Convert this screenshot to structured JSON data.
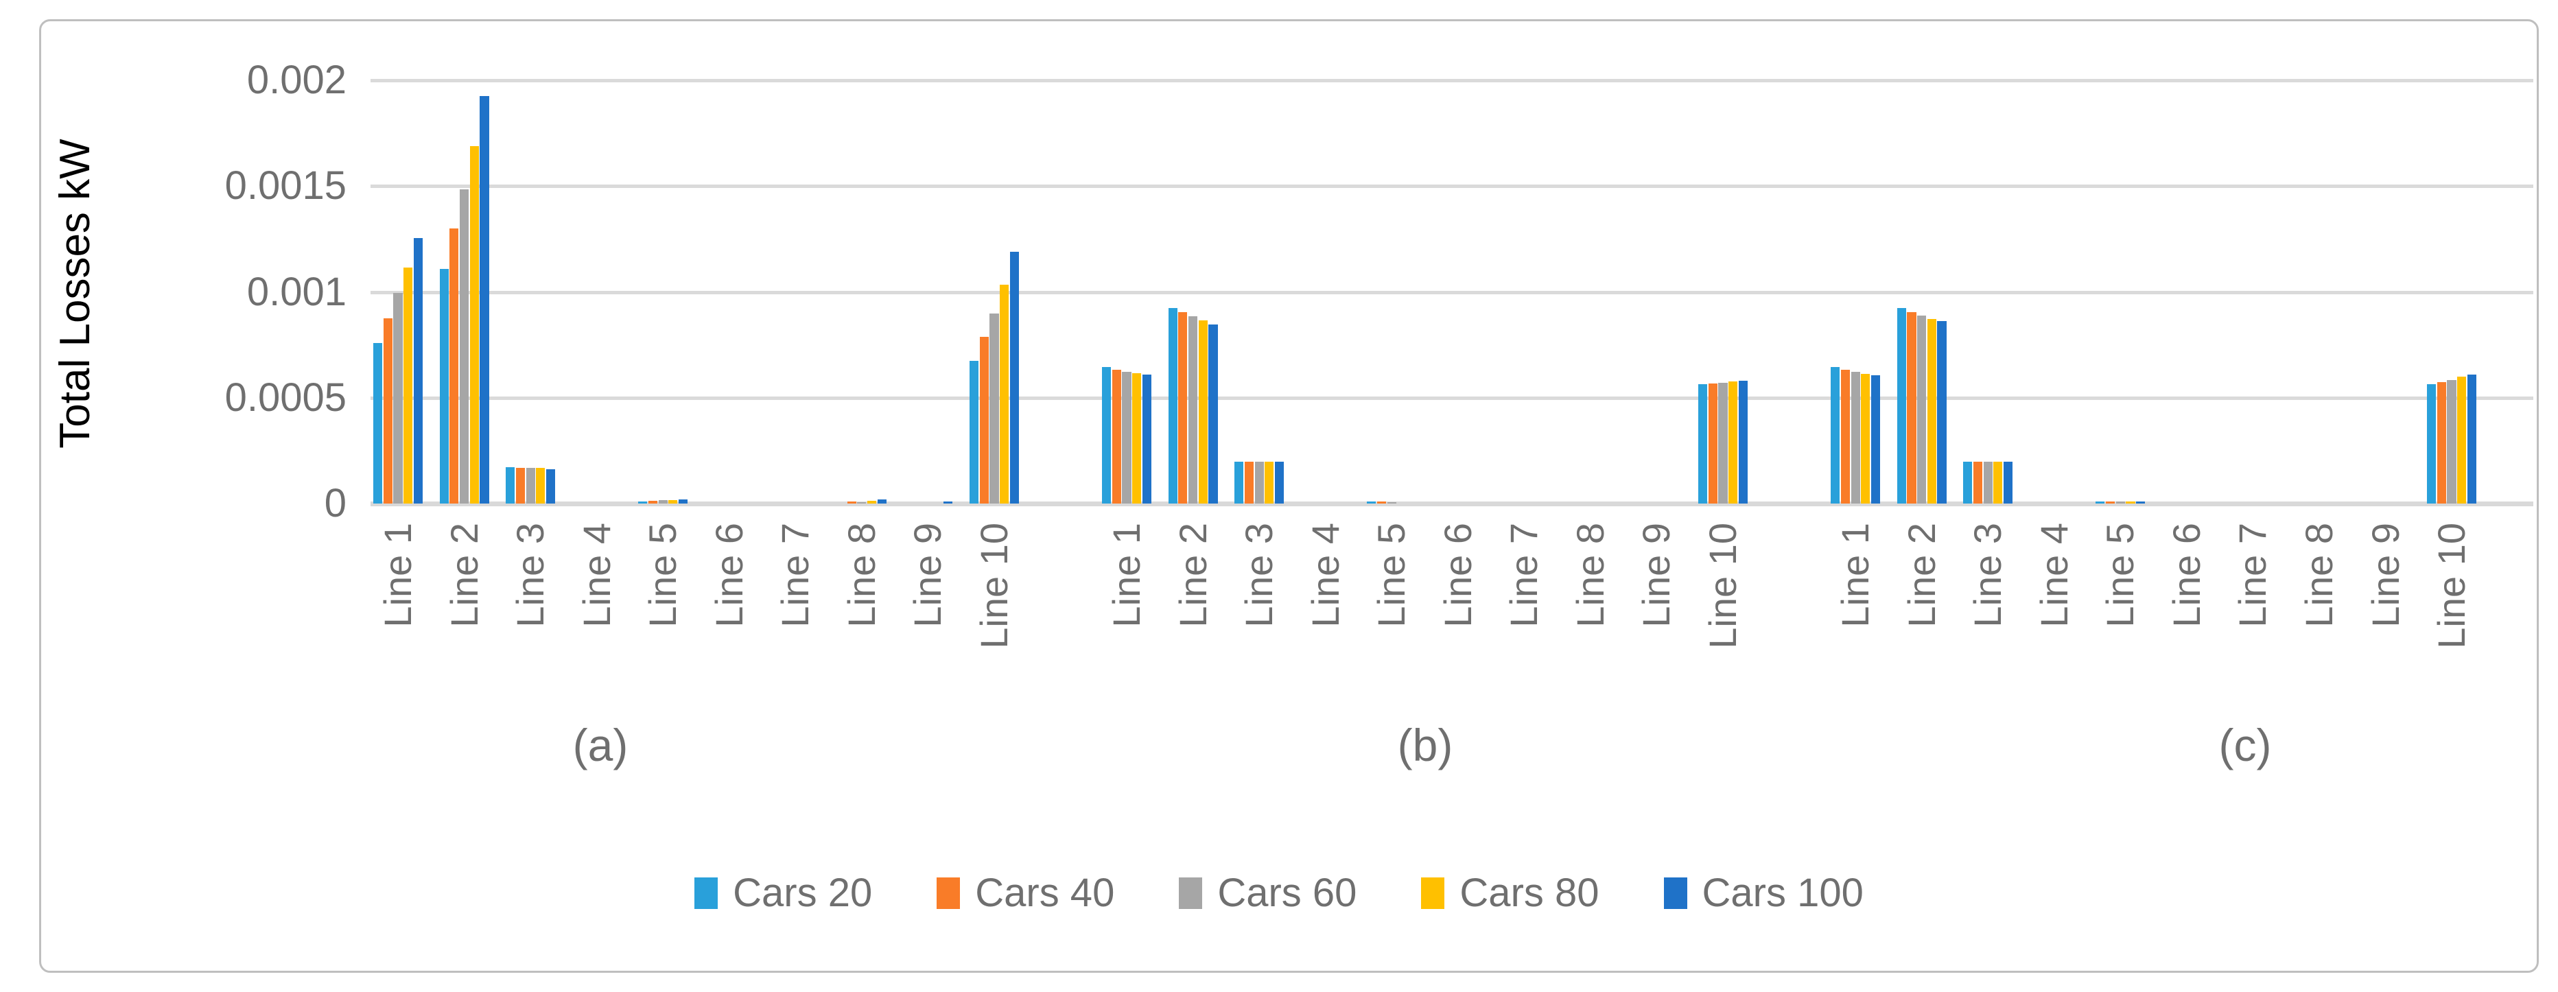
{
  "figure": {
    "border_color": "#BFBFBF",
    "background_color": "#FFFFFF",
    "grid_color": "#DADADA",
    "axis_color": "#D9D9D9",
    "text_color": "#6F6F6F"
  },
  "chart_data": {
    "type": "bar",
    "title": "",
    "xlabel": "",
    "ylabel": "Total Losses kW",
    "ylim": [
      0,
      0.002
    ],
    "yticks": [
      0,
      0.0005,
      0.001,
      0.0015,
      0.002
    ],
    "ytick_labels": [
      "0",
      "0.0005",
      "0.001",
      "0.0015",
      "0.002"
    ],
    "grid": true,
    "legend_position": "bottom",
    "categories": [
      "Line 1",
      "Line 2",
      "Line 3",
      "Line 4",
      "Line 5",
      "Line 6",
      "Line 7",
      "Line 8",
      "Line 9",
      "Line 10"
    ],
    "series_names": [
      "Cars 20",
      "Cars 40",
      "Cars 60",
      "Cars 80",
      "Cars 100"
    ],
    "legend": [
      {
        "label": "Cars 20",
        "color": "#29A0DA"
      },
      {
        "label": "Cars 40",
        "color": "#F97C28"
      },
      {
        "label": "Cars 60",
        "color": "#A6A6A6"
      },
      {
        "label": "Cars 80",
        "color": "#FFC000"
      },
      {
        "label": "Cars 100",
        "color": "#1F72C8"
      }
    ],
    "panels": [
      {
        "label": "(a)",
        "values": [
          [
            0.00076,
            0.000875,
            0.000995,
            0.001115,
            0.001255
          ],
          [
            0.00111,
            0.0013,
            0.001485,
            0.00169,
            0.001925
          ],
          [
            0.000172,
            0.00017,
            0.000168,
            0.000168,
            0.000163
          ],
          [
            0,
            0,
            0,
            0,
            0
          ],
          [
            1e-05,
            1.3e-05,
            1.6e-05,
            1.5e-05,
            2e-05
          ],
          [
            0,
            0,
            0,
            0,
            0
          ],
          [
            0,
            0,
            0,
            0,
            0
          ],
          [
            0,
            1e-05,
            8e-06,
            1.4e-05,
            2e-05
          ],
          [
            0,
            0,
            0,
            0,
            1e-05
          ],
          [
            0.000673,
            0.000787,
            0.000898,
            0.001034,
            0.001189
          ]
        ]
      },
      {
        "label": "(b)",
        "values": [
          [
            0.000644,
            0.000632,
            0.000623,
            0.000616,
            0.000609
          ],
          [
            0.000924,
            0.000905,
            0.000886,
            0.000867,
            0.000846
          ],
          [
            0.000199,
            0.000199,
            0.000199,
            0.000199,
            0.000199
          ],
          [
            0,
            0,
            0,
            0,
            0
          ],
          [
            1e-05,
            1.1e-05,
            8e-06,
            0,
            0
          ],
          [
            0,
            0,
            0,
            0,
            0
          ],
          [
            0,
            0,
            0,
            0,
            0
          ],
          [
            0,
            0,
            0,
            0,
            0
          ],
          [
            0,
            0,
            0,
            0,
            0
          ],
          [
            0.000565,
            0.000568,
            0.000572,
            0.000576,
            0.000579
          ]
        ]
      },
      {
        "label": "(c)",
        "values": [
          [
            0.000644,
            0.000631,
            0.000622,
            0.000612,
            0.000605
          ],
          [
            0.000924,
            0.000906,
            0.000889,
            0.000873,
            0.000861
          ],
          [
            0.000199,
            0.000199,
            0.000199,
            0.000199,
            0.000199
          ],
          [
            0,
            0,
            0,
            0,
            0
          ],
          [
            1e-05,
            1e-05,
            1e-05,
            1e-05,
            1e-05
          ],
          [
            0,
            0,
            0,
            0,
            0
          ],
          [
            0,
            0,
            0,
            0,
            0
          ],
          [
            0,
            0,
            0,
            0,
            0
          ],
          [
            0,
            0,
            0,
            0,
            0
          ],
          [
            0.000563,
            0.000574,
            0.000583,
            0.000599,
            0.000609
          ]
        ]
      }
    ]
  }
}
